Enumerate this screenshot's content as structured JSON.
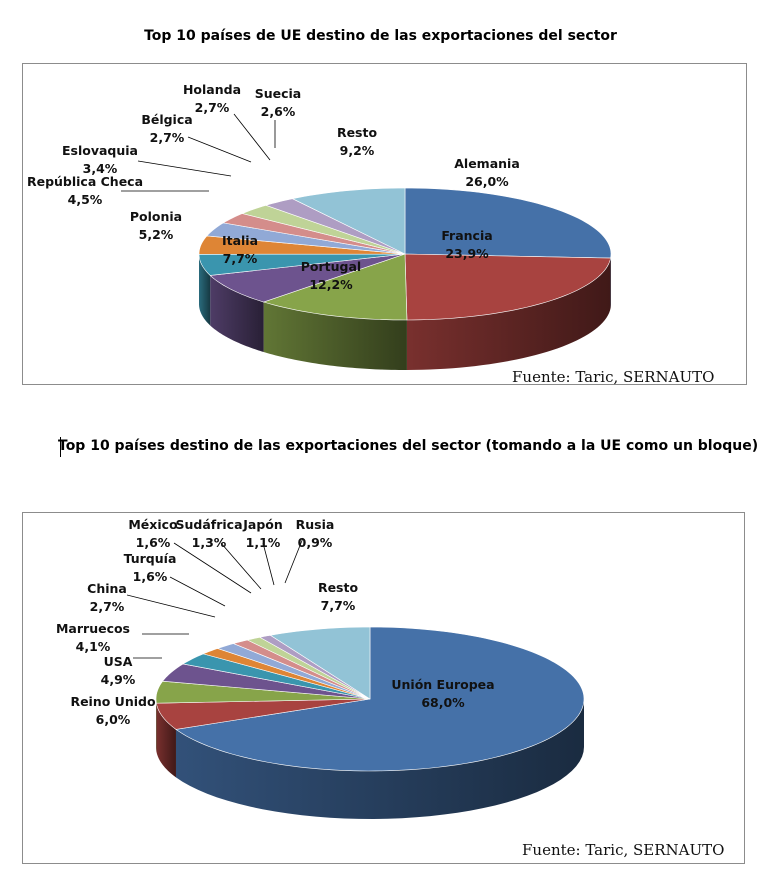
{
  "chart_data": [
    {
      "type": "pie",
      "title": "Top 10 países de UE destino de las exportaciones del sector",
      "source": "Fuente: Taric, SERNAUTO",
      "slices": [
        {
          "label": "Alemania",
          "value_label": "26,0%",
          "value": 26.0,
          "color": "#4571a8"
        },
        {
          "label": "Francia",
          "value_label": "23,9%",
          "value": 23.9,
          "color": "#a84340"
        },
        {
          "label": "Portugal",
          "value_label": "12,2%",
          "value": 12.2,
          "color": "#87a44a"
        },
        {
          "label": "Italia",
          "value_label": "7,7%",
          "value": 7.7,
          "color": "#6d538e"
        },
        {
          "label": "Polonia",
          "value_label": "5,2%",
          "value": 5.2,
          "color": "#3a95ae"
        },
        {
          "label": "República Checa",
          "value_label": "4,5%",
          "value": 4.5,
          "color": "#de8535"
        },
        {
          "label": "Eslovaquia",
          "value_label": "3,4%",
          "value": 3.4,
          "color": "#91a9d6"
        },
        {
          "label": "Bélgica",
          "value_label": "2,7%",
          "value": 2.7,
          "color": "#d48d8b"
        },
        {
          "label": "Holanda",
          "value_label": "2,7%",
          "value": 2.7,
          "color": "#bfd397"
        },
        {
          "label": "Suecia",
          "value_label": "2,6%",
          "value": 2.6,
          "color": "#ae9dc3"
        },
        {
          "label": "Resto",
          "value_label": "9,2%",
          "value": 9.2,
          "color": "#92c3d6"
        }
      ]
    },
    {
      "type": "pie",
      "title": "Top 10 países destino de las exportaciones del sector (tomando a la UE como un bloque)",
      "source": "Fuente: Taric, SERNAUTO",
      "slices": [
        {
          "label": "Unión Europea",
          "value_label": "68,0%",
          "value": 68.0,
          "color": "#4571a8"
        },
        {
          "label": "Reino Unido",
          "value_label": "6,0%",
          "value": 6.0,
          "color": "#a84340"
        },
        {
          "label": "USA",
          "value_label": "4,9%",
          "value": 4.9,
          "color": "#87a44a"
        },
        {
          "label": "Marruecos",
          "value_label": "4,1%",
          "value": 4.1,
          "color": "#6d538e"
        },
        {
          "label": "China",
          "value_label": "2,7%",
          "value": 2.7,
          "color": "#3a95ae"
        },
        {
          "label": "Turquía",
          "value_label": "1,6%",
          "value": 1.6,
          "color": "#de8535"
        },
        {
          "label": "México",
          "value_label": "1,6%",
          "value": 1.6,
          "color": "#91a9d6"
        },
        {
          "label": "Sudáfrica",
          "value_label": "1,3%",
          "value": 1.3,
          "color": "#d48d8b"
        },
        {
          "label": "Japón",
          "value_label": "1,1%",
          "value": 1.1,
          "color": "#bfd397"
        },
        {
          "label": "Rusia",
          "value_label": "0,9%",
          "value": 0.9,
          "color": "#ae9dc3"
        },
        {
          "label": "Resto",
          "value_label": "7,7%",
          "value": 7.7,
          "color": "#92c3d6"
        }
      ]
    }
  ]
}
